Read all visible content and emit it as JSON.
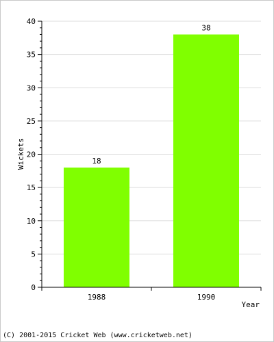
{
  "chart_data": {
    "type": "bar",
    "categories": [
      "1988",
      "1990"
    ],
    "values": [
      18,
      38
    ],
    "data_labels": [
      "18",
      "38"
    ],
    "xlabel": "Year",
    "ylabel": "Wickets",
    "ylim": [
      0,
      40
    ],
    "yticks": [
      "0",
      "5",
      "10",
      "15",
      "20",
      "25",
      "30",
      "35",
      "40"
    ],
    "grid": true,
    "bar_color": "#80ff00",
    "grid_color": "#dddddd"
  },
  "footer": {
    "credit": "(C) 2001-2015 Cricket Web (www.cricketweb.net)"
  }
}
